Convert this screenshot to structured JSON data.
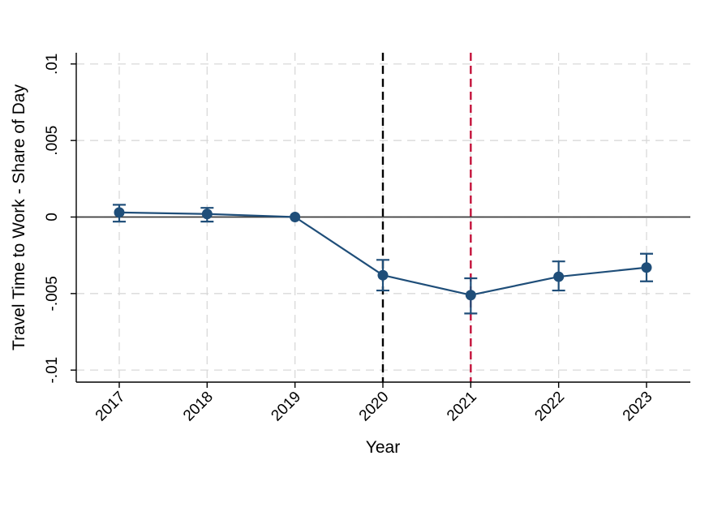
{
  "chart_data": {
    "type": "line",
    "title": "",
    "xlabel": "Year",
    "ylabel": "Travel Time to Work - Share of Day",
    "categories": [
      "2017",
      "2018",
      "2019",
      "2020",
      "2021",
      "2022",
      "2023"
    ],
    "series": [
      {
        "values": [
          0.0003,
          0.0002,
          0,
          -0.0038,
          -0.0051,
          -0.0039,
          -0.0033
        ],
        "ci_high": [
          0.0008,
          0.0006,
          null,
          -0.0028,
          -0.004,
          -0.0029,
          -0.0024
        ],
        "ci_low": [
          -0.0003,
          -0.0003,
          null,
          -0.0048,
          -0.0063,
          -0.0048,
          -0.0042
        ],
        "marker": "circle",
        "color": "#1f4e79"
      }
    ],
    "ylim": [
      -0.0108,
      0.0108
    ],
    "yticks": [
      0.01,
      0.005,
      0,
      -0.005,
      -0.01
    ],
    "ytick_labels": [
      ".01",
      ".005",
      "0",
      "-.005",
      "-.01"
    ],
    "xtick_angle": 45,
    "ytick_angle": 90,
    "grid": "dashed-both-axes",
    "legend": "none",
    "reference_lines": {
      "hline_y": 0,
      "vlines": [
        {
          "x": "2020",
          "style": "dashed",
          "color": "#000000"
        },
        {
          "x": "2021",
          "style": "dashed",
          "color": "#c4113a"
        }
      ]
    },
    "colors": {
      "series": "#1f4e79",
      "grid": "#d9d9d9",
      "zero_line": "#3c3c3c",
      "axis": "#000000",
      "text": "#000000",
      "background": "#ffffff"
    }
  }
}
